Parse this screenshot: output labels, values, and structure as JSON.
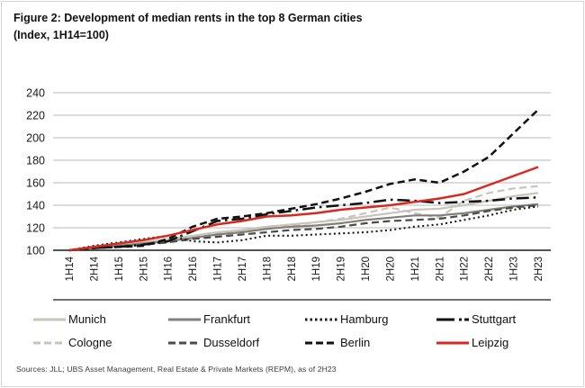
{
  "figure": {
    "title_line1": "Figure 2: Development of median rents in the top 8 German cities",
    "title_line2": "(Index, 1H14=100)",
    "source": "Sources: JLL; UBS Asset Management, Real Estate & Private Markets (REPM), as of 2H23"
  },
  "chart_data": {
    "type": "line",
    "x": [
      "1H14",
      "2H14",
      "1H15",
      "2H15",
      "1H16",
      "2H16",
      "1H17",
      "2H17",
      "1H18",
      "2H18",
      "1H19",
      "2H19",
      "1H20",
      "2H20",
      "1H21",
      "2H21",
      "1H22",
      "2H22",
      "1H23",
      "2H23"
    ],
    "ylim": [
      100,
      240
    ],
    "ytick_step": 20,
    "yticks": [
      100,
      120,
      140,
      160,
      180,
      200,
      220,
      240
    ],
    "grid": true,
    "legend_position": "bottom",
    "series": [
      {
        "name": "Munich",
        "color": "#c8c4ba",
        "style": "solid",
        "width": 2.2,
        "values": [
          100,
          102,
          104,
          107,
          110,
          113,
          116,
          118,
          121,
          123,
          125,
          127,
          130,
          133,
          136,
          137,
          140,
          144,
          148,
          151
        ]
      },
      {
        "name": "Frankfurt",
        "color": "#807f79",
        "style": "solid",
        "width": 2.2,
        "values": [
          100,
          102,
          104,
          106,
          108,
          111,
          114,
          116,
          119,
          121,
          122,
          124,
          127,
          129,
          131,
          131,
          133,
          136,
          139,
          141
        ]
      },
      {
        "name": "Hamburg",
        "color": "#1a1a1a",
        "style": "dotted",
        "width": 2.1,
        "values": [
          100,
          104,
          107,
          110,
          113,
          108,
          107,
          109,
          113,
          113,
          114,
          115,
          116,
          118,
          121,
          123,
          127,
          131,
          136,
          139
        ]
      },
      {
        "name": "Stuttgart",
        "color": "#111111",
        "style": "dashdot",
        "width": 2.5,
        "values": [
          100,
          102,
          103,
          105,
          108,
          117,
          126,
          128,
          132,
          135,
          138,
          140,
          142,
          145,
          144,
          142,
          143,
          144,
          146,
          147
        ]
      },
      {
        "name": "Cologne",
        "color": "#c8c4ba",
        "style": "dashed",
        "width": 2.2,
        "values": [
          100,
          102,
          104,
          106,
          109,
          112,
          115,
          117,
          120,
          122,
          125,
          128,
          133,
          138,
          133,
          129,
          144,
          151,
          155,
          157
        ]
      },
      {
        "name": "Dusseldorf",
        "color": "#4c4c47",
        "style": "dashed",
        "width": 2.2,
        "values": [
          100,
          102,
          103,
          105,
          107,
          110,
          112,
          114,
          116,
          118,
          119,
          121,
          124,
          126,
          127,
          128,
          131,
          135,
          138,
          140
        ]
      },
      {
        "name": "Berlin",
        "color": "#111111",
        "style": "dashed",
        "width": 2.5,
        "values": [
          100,
          102,
          103,
          104,
          110,
          121,
          128,
          130,
          133,
          137,
          141,
          146,
          152,
          159,
          163,
          160,
          170,
          183,
          204,
          225
        ]
      },
      {
        "name": "Leipzig",
        "color": "#d9291f",
        "style": "solid",
        "width": 2.5,
        "values": [
          100,
          103,
          106,
          109,
          113,
          118,
          123,
          126,
          130,
          131,
          133,
          136,
          138,
          140,
          143,
          146,
          150,
          158,
          166,
          174
        ]
      }
    ]
  }
}
